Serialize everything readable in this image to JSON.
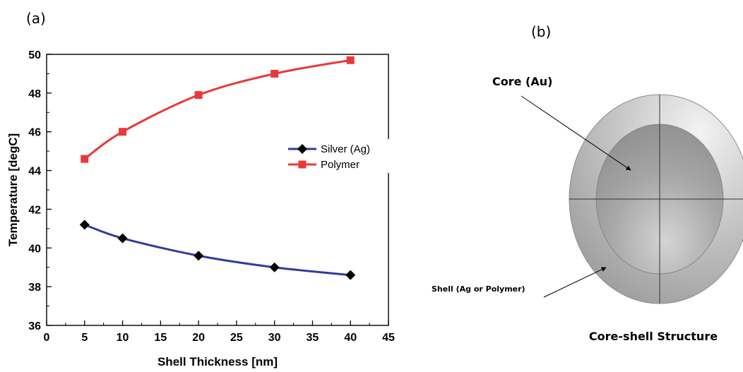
{
  "panels": {
    "a_label": "(a)",
    "b_label": "(b)"
  },
  "chart_data": {
    "type": "line",
    "title": "",
    "xlabel": "Shell Thickness [nm]",
    "ylabel": "Temperature [degC]",
    "xlim": [
      0,
      45
    ],
    "ylim": [
      36,
      50
    ],
    "xticks": [
      0,
      5,
      10,
      15,
      20,
      25,
      30,
      35,
      40,
      45
    ],
    "yticks": [
      36,
      38,
      40,
      42,
      44,
      46,
      48,
      50
    ],
    "grid": false,
    "legend_position": "center-right",
    "series": [
      {
        "name": "Silver (Ag)",
        "color": "#2e3c9e",
        "marker": "diamond",
        "marker_color": "#000000",
        "x": [
          5,
          10,
          20,
          30,
          40
        ],
        "y": [
          41.2,
          40.5,
          39.6,
          39.0,
          38.6
        ]
      },
      {
        "name": "Polymer",
        "color": "#e8393a",
        "marker": "square",
        "marker_color": "#e8393a",
        "x": [
          5,
          10,
          20,
          30,
          40
        ],
        "y": [
          44.6,
          46.0,
          47.9,
          49.0,
          49.7
        ]
      }
    ]
  },
  "diagram": {
    "core_label": "Core (Au)",
    "shell_label": "Shell (Ag or Polymer)",
    "caption": "Core-shell Structure"
  }
}
